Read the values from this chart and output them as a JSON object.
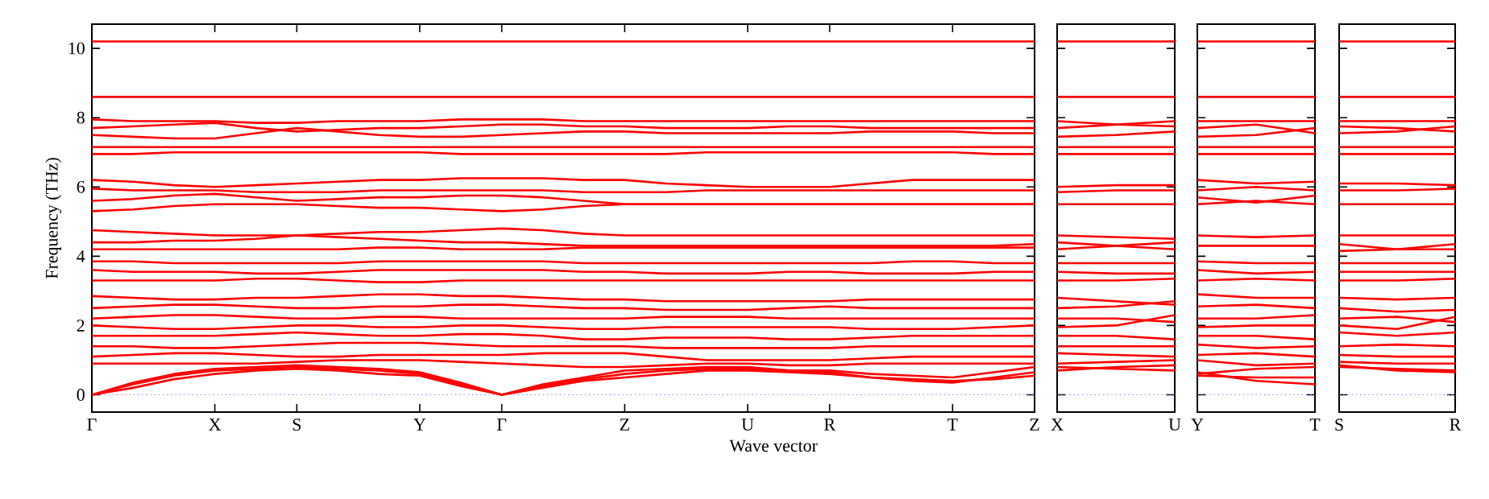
{
  "chart_data": [
    {
      "type": "line",
      "ylabel": "Frequency (THz)",
      "xlabel": "Wave vector",
      "categories": [
        "Γ",
        null,
        null,
        "X",
        null,
        "S",
        null,
        null,
        "Y",
        null,
        "Γ",
        null,
        null,
        "Z",
        null,
        null,
        "U",
        null,
        "R",
        null,
        null,
        "T",
        null,
        "Z"
      ],
      "ylim": [
        -0.5,
        10.7
      ],
      "yticks": [
        0,
        2,
        4,
        6,
        8,
        10
      ],
      "ref_lines": [
        {
          "axis": "y",
          "value": 0,
          "color": "#6666ff",
          "line_style": "dotted"
        }
      ],
      "series": [
        {
          "color": "#ff0000",
          "values": [
            10.2,
            10.2,
            10.2,
            10.2,
            10.2,
            10.2,
            10.2,
            10.2,
            10.2,
            10.2,
            10.2,
            10.2,
            10.2,
            10.2,
            10.2,
            10.2,
            10.2,
            10.2,
            10.2,
            10.2,
            10.2,
            10.2,
            10.2,
            10.2
          ]
        },
        {
          "color": "#ff0000",
          "values": [
            8.6,
            8.6,
            8.6,
            8.6,
            8.6,
            8.6,
            8.6,
            8.6,
            8.6,
            8.6,
            8.6,
            8.6,
            8.6,
            8.6,
            8.6,
            8.6,
            8.6,
            8.6,
            8.6,
            8.6,
            8.6,
            8.6,
            8.6,
            8.6
          ]
        },
        {
          "color": "#ff0000",
          "values": [
            7.95,
            7.9,
            7.9,
            7.9,
            7.85,
            7.85,
            7.9,
            7.9,
            7.9,
            7.95,
            7.95,
            7.95,
            7.9,
            7.9,
            7.9,
            7.9,
            7.9,
            7.9,
            7.9,
            7.9,
            7.9,
            7.9,
            7.9,
            7.9
          ]
        },
        {
          "color": "#ff0000",
          "values": [
            7.7,
            7.75,
            7.8,
            7.85,
            7.7,
            7.6,
            7.65,
            7.7,
            7.7,
            7.75,
            7.8,
            7.8,
            7.75,
            7.75,
            7.7,
            7.7,
            7.7,
            7.75,
            7.75,
            7.7,
            7.7,
            7.7,
            7.7,
            7.7
          ]
        },
        {
          "color": "#ff0000",
          "values": [
            7.5,
            7.45,
            7.4,
            7.4,
            7.55,
            7.7,
            7.6,
            7.5,
            7.45,
            7.45,
            7.5,
            7.55,
            7.6,
            7.6,
            7.55,
            7.55,
            7.55,
            7.55,
            7.55,
            7.6,
            7.6,
            7.6,
            7.55,
            7.55
          ]
        },
        {
          "color": "#ff0000",
          "values": [
            7.15,
            7.15,
            7.15,
            7.15,
            7.15,
            7.15,
            7.15,
            7.15,
            7.15,
            7.15,
            7.15,
            7.15,
            7.15,
            7.15,
            7.15,
            7.15,
            7.15,
            7.15,
            7.15,
            7.15,
            7.15,
            7.15,
            7.15,
            7.15
          ]
        },
        {
          "color": "#ff0000",
          "values": [
            6.95,
            6.95,
            7.0,
            7.0,
            7.0,
            7.0,
            7.0,
            7.0,
            7.0,
            6.95,
            6.95,
            6.95,
            6.95,
            6.95,
            6.95,
            7.0,
            7.0,
            7.0,
            7.0,
            7.0,
            7.0,
            7.0,
            6.95,
            6.95
          ]
        },
        {
          "color": "#ff0000",
          "values": [
            6.2,
            6.15,
            6.05,
            6.0,
            6.05,
            6.1,
            6.15,
            6.2,
            6.2,
            6.25,
            6.25,
            6.25,
            6.2,
            6.2,
            6.1,
            6.05,
            6.0,
            6.0,
            6.0,
            6.1,
            6.2,
            6.2,
            6.2,
            6.2
          ]
        },
        {
          "color": "#ff0000",
          "values": [
            5.95,
            5.9,
            5.9,
            5.9,
            5.85,
            5.85,
            5.85,
            5.9,
            5.9,
            5.9,
            5.9,
            5.9,
            5.85,
            5.85,
            5.85,
            5.9,
            5.9,
            5.9,
            5.9,
            5.9,
            5.9,
            5.9,
            5.9,
            5.9
          ]
        },
        {
          "color": "#ff0000",
          "values": [
            5.6,
            5.65,
            5.75,
            5.8,
            5.7,
            5.6,
            5.65,
            5.7,
            5.7,
            5.75,
            5.75,
            5.7,
            5.6,
            5.5,
            5.5,
            5.5,
            5.5,
            5.5,
            5.5,
            5.5,
            5.5,
            5.5,
            5.5,
            5.5
          ]
        },
        {
          "color": "#ff0000",
          "values": [
            5.3,
            5.35,
            5.45,
            5.5,
            5.5,
            5.5,
            5.45,
            5.4,
            5.4,
            5.35,
            5.3,
            5.35,
            5.45,
            5.5,
            5.5,
            5.5,
            5.5,
            5.5,
            5.5,
            5.5,
            5.5,
            5.5,
            5.5,
            5.5
          ]
        },
        {
          "color": "#ff0000",
          "values": [
            4.75,
            4.7,
            4.65,
            4.6,
            4.6,
            4.6,
            4.65,
            4.7,
            4.7,
            4.75,
            4.8,
            4.75,
            4.65,
            4.6,
            4.6,
            4.6,
            4.6,
            4.6,
            4.6,
            4.6,
            4.6,
            4.6,
            4.6,
            4.6
          ]
        },
        {
          "color": "#ff0000",
          "values": [
            4.4,
            4.4,
            4.45,
            4.45,
            4.5,
            4.6,
            4.55,
            4.5,
            4.45,
            4.4,
            4.4,
            4.35,
            4.3,
            4.3,
            4.3,
            4.3,
            4.3,
            4.3,
            4.3,
            4.3,
            4.3,
            4.3,
            4.3,
            4.35
          ]
        },
        {
          "color": "#ff0000",
          "values": [
            4.2,
            4.2,
            4.2,
            4.2,
            4.2,
            4.2,
            4.2,
            4.25,
            4.25,
            4.2,
            4.2,
            4.2,
            4.25,
            4.25,
            4.25,
            4.25,
            4.25,
            4.25,
            4.25,
            4.25,
            4.25,
            4.25,
            4.25,
            4.25
          ]
        },
        {
          "color": "#ff0000",
          "values": [
            3.85,
            3.85,
            3.8,
            3.8,
            3.8,
            3.8,
            3.8,
            3.85,
            3.85,
            3.85,
            3.85,
            3.85,
            3.8,
            3.8,
            3.8,
            3.8,
            3.8,
            3.8,
            3.8,
            3.8,
            3.85,
            3.85,
            3.8,
            3.8
          ]
        },
        {
          "color": "#ff0000",
          "values": [
            3.6,
            3.55,
            3.55,
            3.55,
            3.5,
            3.5,
            3.55,
            3.6,
            3.6,
            3.6,
            3.6,
            3.6,
            3.55,
            3.55,
            3.5,
            3.5,
            3.5,
            3.55,
            3.55,
            3.5,
            3.5,
            3.5,
            3.55,
            3.55
          ]
        },
        {
          "color": "#ff0000",
          "values": [
            3.3,
            3.3,
            3.3,
            3.3,
            3.35,
            3.35,
            3.3,
            3.25,
            3.25,
            3.3,
            3.3,
            3.3,
            3.3,
            3.3,
            3.3,
            3.3,
            3.3,
            3.3,
            3.3,
            3.3,
            3.3,
            3.3,
            3.3,
            3.3
          ]
        },
        {
          "color": "#ff0000",
          "values": [
            2.85,
            2.8,
            2.75,
            2.75,
            2.8,
            2.8,
            2.85,
            2.9,
            2.9,
            2.85,
            2.85,
            2.8,
            2.75,
            2.75,
            2.7,
            2.7,
            2.7,
            2.7,
            2.7,
            2.75,
            2.75,
            2.75,
            2.75,
            2.75
          ]
        },
        {
          "color": "#ff0000",
          "values": [
            2.5,
            2.55,
            2.6,
            2.6,
            2.55,
            2.5,
            2.5,
            2.55,
            2.55,
            2.6,
            2.6,
            2.55,
            2.5,
            2.5,
            2.45,
            2.45,
            2.45,
            2.5,
            2.55,
            2.5,
            2.5,
            2.5,
            2.5,
            2.5
          ]
        },
        {
          "color": "#ff0000",
          "values": [
            2.2,
            2.25,
            2.3,
            2.3,
            2.25,
            2.2,
            2.2,
            2.25,
            2.25,
            2.2,
            2.2,
            2.2,
            2.2,
            2.2,
            2.25,
            2.25,
            2.25,
            2.2,
            2.2,
            2.2,
            2.2,
            2.2,
            2.2,
            2.2
          ]
        },
        {
          "color": "#ff0000",
          "values": [
            2.0,
            1.95,
            1.9,
            1.9,
            1.95,
            2.0,
            2.0,
            1.95,
            1.95,
            2.0,
            2.0,
            1.95,
            1.9,
            1.9,
            1.95,
            1.95,
            1.95,
            1.95,
            1.95,
            1.9,
            1.9,
            1.9,
            1.95,
            2.0
          ]
        },
        {
          "color": "#ff0000",
          "values": [
            1.7,
            1.7,
            1.7,
            1.7,
            1.75,
            1.8,
            1.75,
            1.7,
            1.7,
            1.75,
            1.75,
            1.7,
            1.6,
            1.6,
            1.65,
            1.65,
            1.65,
            1.6,
            1.6,
            1.65,
            1.7,
            1.7,
            1.7,
            1.7
          ]
        },
        {
          "color": "#ff0000",
          "values": [
            1.4,
            1.4,
            1.35,
            1.35,
            1.4,
            1.45,
            1.5,
            1.5,
            1.5,
            1.45,
            1.4,
            1.4,
            1.4,
            1.4,
            1.35,
            1.35,
            1.35,
            1.35,
            1.35,
            1.4,
            1.4,
            1.4,
            1.4,
            1.4
          ]
        },
        {
          "color": "#ff0000",
          "values": [
            1.1,
            1.15,
            1.2,
            1.2,
            1.15,
            1.1,
            1.1,
            1.15,
            1.15,
            1.15,
            1.15,
            1.2,
            1.2,
            1.2,
            1.1,
            1.0,
            1.0,
            1.0,
            1.0,
            1.05,
            1.1,
            1.1,
            1.1,
            1.1
          ]
        },
        {
          "color": "#ff0000",
          "values": [
            0.9,
            0.9,
            0.9,
            0.9,
            0.9,
            0.95,
            1.0,
            1.0,
            1.0,
            0.95,
            0.9,
            0.85,
            0.8,
            0.8,
            0.85,
            0.9,
            0.9,
            0.85,
            0.85,
            0.9,
            0.9,
            0.9,
            0.9,
            0.9
          ]
        },
        {
          "color": "#ff0000",
          "values": [
            0,
            0.3,
            0.55,
            0.7,
            0.75,
            0.8,
            0.75,
            0.7,
            0.6,
            0.3,
            0,
            0.25,
            0.45,
            0.6,
            0.7,
            0.75,
            0.75,
            0.7,
            0.7,
            0.6,
            0.55,
            0.5,
            0.65,
            0.8
          ]
        },
        {
          "color": "#ff0000",
          "values": [
            0,
            0.35,
            0.6,
            0.75,
            0.8,
            0.85,
            0.8,
            0.75,
            0.65,
            0.35,
            0,
            0.3,
            0.5,
            0.7,
            0.75,
            0.8,
            0.8,
            0.7,
            0.65,
            0.5,
            0.4,
            0.35,
            0.5,
            0.65
          ]
        },
        {
          "color": "#ff0000",
          "values": [
            0,
            0.2,
            0.45,
            0.6,
            0.7,
            0.75,
            0.7,
            0.6,
            0.55,
            0.25,
            0,
            0.2,
            0.4,
            0.5,
            0.6,
            0.7,
            0.7,
            0.65,
            0.6,
            0.5,
            0.45,
            0.4,
            0.45,
            0.55
          ]
        }
      ]
    },
    {
      "type": "line",
      "tick_labels": "x",
      "categories": [
        "X",
        null,
        "U"
      ],
      "ylim": [
        -0.5,
        10.7
      ],
      "yticks": [
        0,
        2,
        4,
        6,
        8,
        10
      ],
      "ref_lines": [
        {
          "axis": "y",
          "value": 0,
          "color": "#6666ff",
          "line_style": "dotted"
        }
      ],
      "series": [
        {
          "color": "#ff0000",
          "values": [
            10.2,
            10.2,
            10.2
          ]
        },
        {
          "color": "#ff0000",
          "values": [
            8.6,
            8.6,
            8.6
          ]
        },
        {
          "color": "#ff0000",
          "values": [
            7.9,
            7.8,
            7.75
          ]
        },
        {
          "color": "#ff0000",
          "values": [
            7.7,
            7.8,
            7.9
          ]
        },
        {
          "color": "#ff0000",
          "values": [
            7.45,
            7.5,
            7.6
          ]
        },
        {
          "color": "#ff0000",
          "values": [
            7.15,
            7.15,
            7.15
          ]
        },
        {
          "color": "#ff0000",
          "values": [
            6.95,
            6.95,
            6.95
          ]
        },
        {
          "color": "#ff0000",
          "values": [
            6.0,
            6.05,
            6.05
          ]
        },
        {
          "color": "#ff0000",
          "values": [
            5.85,
            5.9,
            5.9
          ]
        },
        {
          "color": "#ff0000",
          "values": [
            5.5,
            5.5,
            5.5
          ]
        },
        {
          "color": "#ff0000",
          "values": [
            4.6,
            4.55,
            4.5
          ]
        },
        {
          "color": "#ff0000",
          "values": [
            4.4,
            4.3,
            4.2
          ]
        },
        {
          "color": "#ff0000",
          "values": [
            4.2,
            4.3,
            4.4
          ]
        },
        {
          "color": "#ff0000",
          "values": [
            3.8,
            3.8,
            3.8
          ]
        },
        {
          "color": "#ff0000",
          "values": [
            3.55,
            3.5,
            3.5
          ]
        },
        {
          "color": "#ff0000",
          "values": [
            3.3,
            3.3,
            3.35
          ]
        },
        {
          "color": "#ff0000",
          "values": [
            2.8,
            2.7,
            2.6
          ]
        },
        {
          "color": "#ff0000",
          "values": [
            2.5,
            2.55,
            2.7
          ]
        },
        {
          "color": "#ff0000",
          "values": [
            2.2,
            2.2,
            2.1
          ]
        },
        {
          "color": "#ff0000",
          "values": [
            1.95,
            2.0,
            2.3
          ]
        },
        {
          "color": "#ff0000",
          "values": [
            1.7,
            1.7,
            1.6
          ]
        },
        {
          "color": "#ff0000",
          "values": [
            1.4,
            1.4,
            1.4
          ]
        },
        {
          "color": "#ff0000",
          "values": [
            1.2,
            1.15,
            1.1
          ]
        },
        {
          "color": "#ff0000",
          "values": [
            0.9,
            0.95,
            1.0
          ]
        },
        {
          "color": "#ff0000",
          "values": [
            0.7,
            0.8,
            0.85
          ]
        },
        {
          "color": "#ff0000",
          "values": [
            0.8,
            0.75,
            0.7
          ]
        }
      ]
    },
    {
      "type": "line",
      "tick_labels": "x",
      "categories": [
        "Y",
        null,
        "T"
      ],
      "ylim": [
        -0.5,
        10.7
      ],
      "yticks": [
        0,
        2,
        4,
        6,
        8,
        10
      ],
      "ref_lines": [
        {
          "axis": "y",
          "value": 0,
          "color": "#6666ff",
          "line_style": "dotted"
        }
      ],
      "series": [
        {
          "color": "#ff0000",
          "values": [
            10.2,
            10.2,
            10.2
          ]
        },
        {
          "color": "#ff0000",
          "values": [
            8.6,
            8.6,
            8.6
          ]
        },
        {
          "color": "#ff0000",
          "values": [
            7.9,
            7.9,
            7.9
          ]
        },
        {
          "color": "#ff0000",
          "values": [
            7.7,
            7.8,
            7.55
          ]
        },
        {
          "color": "#ff0000",
          "values": [
            7.45,
            7.5,
            7.7
          ]
        },
        {
          "color": "#ff0000",
          "values": [
            7.15,
            7.15,
            7.15
          ]
        },
        {
          "color": "#ff0000",
          "values": [
            6.95,
            6.95,
            6.95
          ]
        },
        {
          "color": "#ff0000",
          "values": [
            6.2,
            6.1,
            6.15
          ]
        },
        {
          "color": "#ff0000",
          "values": [
            5.9,
            6.0,
            5.9
          ]
        },
        {
          "color": "#ff0000",
          "values": [
            5.7,
            5.55,
            5.75
          ]
        },
        {
          "color": "#ff0000",
          "values": [
            5.5,
            5.6,
            5.5
          ]
        },
        {
          "color": "#ff0000",
          "values": [
            4.6,
            4.55,
            4.6
          ]
        },
        {
          "color": "#ff0000",
          "values": [
            4.3,
            4.3,
            4.3
          ]
        },
        {
          "color": "#ff0000",
          "values": [
            3.85,
            3.8,
            3.8
          ]
        },
        {
          "color": "#ff0000",
          "values": [
            3.6,
            3.5,
            3.55
          ]
        },
        {
          "color": "#ff0000",
          "values": [
            3.3,
            3.35,
            3.3
          ]
        },
        {
          "color": "#ff0000",
          "values": [
            2.9,
            2.8,
            2.8
          ]
        },
        {
          "color": "#ff0000",
          "values": [
            2.55,
            2.6,
            2.5
          ]
        },
        {
          "color": "#ff0000",
          "values": [
            2.2,
            2.2,
            2.3
          ]
        },
        {
          "color": "#ff0000",
          "values": [
            1.95,
            2.0,
            2.0
          ]
        },
        {
          "color": "#ff0000",
          "values": [
            1.7,
            1.7,
            1.6
          ]
        },
        {
          "color": "#ff0000",
          "values": [
            1.45,
            1.35,
            1.4
          ]
        },
        {
          "color": "#ff0000",
          "values": [
            1.15,
            1.2,
            1.1
          ]
        },
        {
          "color": "#ff0000",
          "values": [
            1.0,
            0.85,
            0.9
          ]
        },
        {
          "color": "#ff0000",
          "values": [
            0.6,
            0.75,
            0.8
          ]
        },
        {
          "color": "#ff0000",
          "values": [
            0.65,
            0.4,
            0.3
          ]
        },
        {
          "color": "#ff0000",
          "values": [
            0.55,
            0.5,
            0.5
          ]
        }
      ]
    },
    {
      "type": "line",
      "tick_labels": "x",
      "categories": [
        "S",
        null,
        "R"
      ],
      "ylim": [
        -0.5,
        10.7
      ],
      "yticks": [
        0,
        2,
        4,
        6,
        8,
        10
      ],
      "ref_lines": [
        {
          "axis": "y",
          "value": 0,
          "color": "#6666ff",
          "line_style": "dotted"
        }
      ],
      "series": [
        {
          "color": "#ff0000",
          "values": [
            10.2,
            10.2,
            10.2
          ]
        },
        {
          "color": "#ff0000",
          "values": [
            8.6,
            8.6,
            8.6
          ]
        },
        {
          "color": "#ff0000",
          "values": [
            7.9,
            7.9,
            7.9
          ]
        },
        {
          "color": "#ff0000",
          "values": [
            7.75,
            7.7,
            7.6
          ]
        },
        {
          "color": "#ff0000",
          "values": [
            7.55,
            7.6,
            7.75
          ]
        },
        {
          "color": "#ff0000",
          "values": [
            7.15,
            7.15,
            7.15
          ]
        },
        {
          "color": "#ff0000",
          "values": [
            6.95,
            6.95,
            6.95
          ]
        },
        {
          "color": "#ff0000",
          "values": [
            6.1,
            6.1,
            6.05
          ]
        },
        {
          "color": "#ff0000",
          "values": [
            5.9,
            5.9,
            5.95
          ]
        },
        {
          "color": "#ff0000",
          "values": [
            5.5,
            5.5,
            5.5
          ]
        },
        {
          "color": "#ff0000",
          "values": [
            4.6,
            4.6,
            4.6
          ]
        },
        {
          "color": "#ff0000",
          "values": [
            4.35,
            4.2,
            4.35
          ]
        },
        {
          "color": "#ff0000",
          "values": [
            4.15,
            4.2,
            4.2
          ]
        },
        {
          "color": "#ff0000",
          "values": [
            3.8,
            3.8,
            3.8
          ]
        },
        {
          "color": "#ff0000",
          "values": [
            3.55,
            3.55,
            3.55
          ]
        },
        {
          "color": "#ff0000",
          "values": [
            3.3,
            3.3,
            3.35
          ]
        },
        {
          "color": "#ff0000",
          "values": [
            2.8,
            2.75,
            2.8
          ]
        },
        {
          "color": "#ff0000",
          "values": [
            2.5,
            2.4,
            2.45
          ]
        },
        {
          "color": "#ff0000",
          "values": [
            2.2,
            2.25,
            2.1
          ]
        },
        {
          "color": "#ff0000",
          "values": [
            2.0,
            1.9,
            2.25
          ]
        },
        {
          "color": "#ff0000",
          "values": [
            1.8,
            1.7,
            1.8
          ]
        },
        {
          "color": "#ff0000",
          "values": [
            1.4,
            1.45,
            1.4
          ]
        },
        {
          "color": "#ff0000",
          "values": [
            1.15,
            1.1,
            1.1
          ]
        },
        {
          "color": "#ff0000",
          "values": [
            0.95,
            0.9,
            0.9
          ]
        },
        {
          "color": "#ff0000",
          "values": [
            0.85,
            0.7,
            0.65
          ]
        },
        {
          "color": "#ff0000",
          "values": [
            0.8,
            0.75,
            0.7
          ]
        }
      ]
    }
  ]
}
